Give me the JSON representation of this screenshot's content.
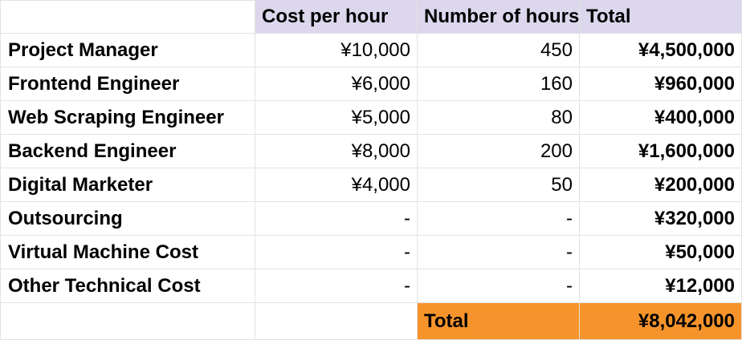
{
  "header": {
    "col0": "",
    "col1": "Cost per hour",
    "col2": "Number of hours",
    "col3": "Total"
  },
  "rows": [
    {
      "role": "Project Manager",
      "cost": "¥10,000",
      "hours": "450",
      "total": "¥4,500,000"
    },
    {
      "role": "Frontend Engineer",
      "cost": "¥6,000",
      "hours": "160",
      "total": "¥960,000"
    },
    {
      "role": "Web Scraping Engineer",
      "cost": "¥5,000",
      "hours": "80",
      "total": "¥400,000"
    },
    {
      "role": "Backend Engineer",
      "cost": "¥8,000",
      "hours": "200",
      "total": "¥1,600,000"
    },
    {
      "role": "Digital Marketer",
      "cost": "¥4,000",
      "hours": "50",
      "total": "¥200,000"
    },
    {
      "role": "Outsourcing",
      "cost": "-",
      "hours": "-",
      "total": "¥320,000"
    },
    {
      "role": "Virtual Machine Cost",
      "cost": "-",
      "hours": "-",
      "total": "¥50,000"
    },
    {
      "role": "Other Technical Cost",
      "cost": "-",
      "hours": "-",
      "total": "¥12,000"
    }
  ],
  "grand_total": {
    "label": "Total",
    "value": "¥8,042,000"
  },
  "colors": {
    "header_bg": "#dcd7ec",
    "total_bg": "#f6942b",
    "grid": "#e2e3e3"
  }
}
